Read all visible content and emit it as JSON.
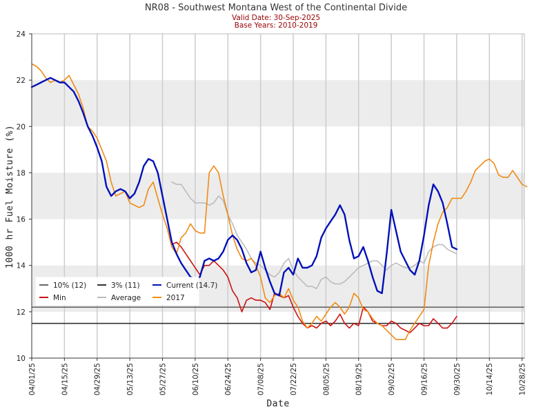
{
  "chart_data": {
    "type": "line",
    "title": "NR08 - Southwest Montana West of the Continental Divide",
    "subtitle_lines": [
      "Valid Date: 30-Sep-2025",
      "Base Years: 2010-2019"
    ],
    "xlabel": "Date",
    "ylabel": "1000 hr Fuel Moisture (%)",
    "ylim": [
      10,
      24
    ],
    "yticks": [
      10,
      12,
      14,
      16,
      18,
      20,
      22,
      24
    ],
    "xlim": [
      0,
      211
    ],
    "xticks": [
      {
        "day": 0,
        "label": "04/01/25"
      },
      {
        "day": 14,
        "label": "04/15/25"
      },
      {
        "day": 28,
        "label": "04/29/25"
      },
      {
        "day": 42,
        "label": "05/13/25"
      },
      {
        "day": 56,
        "label": "05/27/25"
      },
      {
        "day": 70,
        "label": "06/10/25"
      },
      {
        "day": 84,
        "label": "06/24/25"
      },
      {
        "day": 98,
        "label": "07/08/25"
      },
      {
        "day": 112,
        "label": "07/22/25"
      },
      {
        "day": 126,
        "label": "08/05/25"
      },
      {
        "day": 140,
        "label": "08/19/25"
      },
      {
        "day": 154,
        "label": "09/02/25"
      },
      {
        "day": 168,
        "label": "09/16/25"
      },
      {
        "day": 182,
        "label": "09/30/25"
      },
      {
        "day": 196,
        "label": "10/14/25"
      },
      {
        "day": 210,
        "label": "10/28/25"
      }
    ],
    "bands": [
      [
        12,
        14
      ],
      [
        16,
        18
      ],
      [
        20,
        22
      ]
    ],
    "grid": "vertical",
    "legend": {
      "position": "lower-left",
      "columns": 3
    },
    "thresholds": [
      {
        "name": "10% (12)",
        "value": 12.2,
        "color": "#666666"
      },
      {
        "name": "3% (11)",
        "value": 11.5,
        "color": "#333333"
      }
    ],
    "series": [
      {
        "name": "Average",
        "color": "#bbbbbb",
        "width": 1.6,
        "x": [
          60,
          62,
          64,
          66,
          68,
          70,
          72,
          74,
          76,
          78,
          80,
          82,
          84,
          86,
          88,
          90,
          92,
          94,
          96,
          98,
          100,
          102,
          104,
          106,
          108,
          110,
          112,
          114,
          116,
          118,
          120,
          122,
          124,
          126,
          128,
          130,
          132,
          134,
          136,
          138,
          140,
          142,
          144,
          146,
          148,
          150,
          152,
          154,
          156,
          158,
          160,
          162,
          164,
          166,
          168,
          170,
          172,
          174,
          176,
          178,
          180,
          182
        ],
        "y": [
          17.6,
          17.5,
          17.5,
          17.2,
          16.9,
          16.7,
          16.7,
          16.7,
          16.6,
          16.7,
          17.0,
          16.8,
          16.2,
          15.8,
          15.3,
          15.0,
          14.7,
          14.3,
          14.1,
          14.0,
          13.8,
          13.6,
          13.5,
          13.7,
          14.1,
          14.3,
          13.8,
          13.5,
          13.3,
          13.1,
          13.1,
          13.0,
          13.4,
          13.5,
          13.3,
          13.2,
          13.2,
          13.3,
          13.5,
          13.7,
          13.9,
          14.0,
          14.1,
          14.2,
          14.2,
          14.0,
          13.8,
          14.0,
          14.1,
          14.0,
          13.9,
          13.9,
          14.0,
          14.2,
          14.1,
          14.6,
          14.8,
          14.9,
          14.9,
          14.7,
          14.6,
          14.5
        ]
      },
      {
        "name": "Min",
        "color": "#cc1111",
        "width": 1.6,
        "x": [
          60,
          62,
          64,
          66,
          68,
          70,
          72,
          74,
          76,
          78,
          80,
          82,
          84,
          86,
          88,
          90,
          92,
          94,
          96,
          98,
          100,
          102,
          104,
          106,
          108,
          110,
          112,
          114,
          116,
          118,
          120,
          122,
          124,
          126,
          128,
          130,
          132,
          134,
          136,
          138,
          140,
          142,
          144,
          146,
          148,
          150,
          152,
          154,
          156,
          158,
          160,
          162,
          164,
          166,
          168,
          170,
          172,
          174,
          176,
          178,
          180,
          182
        ],
        "y": [
          14.9,
          15.0,
          14.8,
          14.5,
          14.2,
          13.9,
          13.6,
          14.0,
          14.0,
          14.2,
          14.0,
          13.8,
          13.5,
          12.9,
          12.6,
          12.0,
          12.5,
          12.6,
          12.5,
          12.5,
          12.4,
          12.1,
          12.8,
          12.7,
          12.6,
          12.7,
          12.2,
          11.8,
          11.5,
          11.3,
          11.4,
          11.3,
          11.5,
          11.6,
          11.4,
          11.6,
          11.9,
          11.5,
          11.3,
          11.5,
          11.4,
          12.2,
          12.0,
          11.6,
          11.5,
          11.4,
          11.4,
          11.6,
          11.5,
          11.3,
          11.2,
          11.1,
          11.3,
          11.5,
          11.4,
          11.4,
          11.7,
          11.5,
          11.3,
          11.3,
          11.5,
          11.8
        ]
      },
      {
        "name": "2017",
        "color": "#f08a13",
        "width": 1.6,
        "x": [
          0,
          2,
          4,
          6,
          8,
          10,
          12,
          14,
          16,
          18,
          20,
          22,
          24,
          26,
          28,
          30,
          32,
          34,
          36,
          38,
          40,
          42,
          44,
          46,
          48,
          50,
          52,
          54,
          56,
          58,
          60,
          62,
          64,
          66,
          68,
          70,
          72,
          74,
          76,
          78,
          80,
          82,
          84,
          86,
          88,
          90,
          92,
          94,
          96,
          98,
          100,
          102,
          104,
          106,
          108,
          110,
          112,
          114,
          116,
          118,
          120,
          122,
          124,
          126,
          128,
          130,
          132,
          134,
          136,
          138,
          140,
          142,
          144,
          146,
          148,
          150,
          152,
          154,
          156,
          158,
          160,
          162,
          164,
          166,
          168,
          170,
          172,
          174,
          176,
          178,
          180,
          182,
          184,
          186,
          188,
          190,
          192,
          194,
          196,
          198,
          200,
          202,
          204,
          206,
          208,
          210,
          212
        ],
        "y": [
          22.7,
          22.6,
          22.4,
          22.1,
          21.9,
          22.0,
          21.9,
          22.0,
          22.2,
          21.8,
          21.4,
          20.8,
          20.0,
          19.8,
          19.5,
          19.0,
          18.5,
          17.6,
          17.0,
          17.1,
          17.2,
          16.7,
          16.6,
          16.5,
          16.6,
          17.3,
          17.6,
          16.9,
          16.2,
          15.6,
          14.8,
          14.5,
          15.2,
          15.4,
          15.8,
          15.5,
          15.4,
          15.4,
          18.0,
          18.3,
          18.0,
          17.0,
          16.2,
          15.3,
          14.7,
          14.3,
          14.2,
          14.3,
          14.0,
          13.5,
          12.6,
          12.4,
          12.7,
          12.8,
          12.6,
          13.0,
          12.5,
          12.2,
          11.6,
          11.3,
          11.5,
          11.8,
          11.6,
          11.9,
          12.2,
          12.4,
          12.2,
          11.9,
          12.2,
          12.8,
          12.6,
          12.1,
          12.0,
          11.7,
          11.5,
          11.4,
          11.2,
          11.0,
          10.8,
          10.8,
          10.8,
          11.2,
          11.5,
          11.8,
          12.1,
          14.0,
          15.0,
          15.8,
          16.3,
          16.5,
          16.9,
          16.9,
          16.9,
          17.2,
          17.6,
          18.1,
          18.3,
          18.5,
          18.6,
          18.4,
          17.9,
          17.8,
          17.8,
          18.1,
          17.8,
          17.5,
          17.4
        ]
      },
      {
        "name": "Current (14.7)",
        "color": "#0010b8",
        "width": 2.4,
        "x": [
          0,
          2,
          4,
          6,
          8,
          10,
          12,
          14,
          16,
          18,
          20,
          22,
          24,
          26,
          28,
          30,
          32,
          34,
          36,
          38,
          40,
          42,
          44,
          46,
          48,
          50,
          52,
          54,
          56,
          58,
          60,
          62,
          64,
          66,
          68,
          70,
          72,
          74,
          76,
          78,
          80,
          82,
          84,
          86,
          88,
          90,
          92,
          94,
          96,
          98,
          100,
          102,
          104,
          106,
          108,
          110,
          112,
          114,
          116,
          118,
          120,
          122,
          124,
          126,
          128,
          130,
          132,
          134,
          136,
          138,
          140,
          142,
          144,
          146,
          148,
          150,
          152,
          154,
          156,
          158,
          160,
          162,
          164,
          166,
          168,
          170,
          172,
          174,
          176,
          178,
          180,
          182
        ],
        "y": [
          21.7,
          21.8,
          21.9,
          22.0,
          22.1,
          22.0,
          21.9,
          21.9,
          21.7,
          21.5,
          21.1,
          20.6,
          20.0,
          19.6,
          19.1,
          18.5,
          17.4,
          17.0,
          17.2,
          17.3,
          17.2,
          16.9,
          17.1,
          17.6,
          18.3,
          18.6,
          18.5,
          18.0,
          17.0,
          16.0,
          15.0,
          14.5,
          14.1,
          13.8,
          13.5,
          13.4,
          13.5,
          14.2,
          14.3,
          14.2,
          14.3,
          14.6,
          15.1,
          15.3,
          15.1,
          14.7,
          14.1,
          13.7,
          13.8,
          14.6,
          13.9,
          13.3,
          12.8,
          12.7,
          13.7,
          13.9,
          13.6,
          14.3,
          13.9,
          13.9,
          14.0,
          14.4,
          15.2,
          15.6,
          15.9,
          16.2,
          16.6,
          16.2,
          15.1,
          14.3,
          14.4,
          14.8,
          14.2,
          13.5,
          12.9,
          12.8,
          14.5,
          16.4,
          15.5,
          14.6,
          14.2,
          13.8,
          13.6,
          14.2,
          15.3,
          16.6,
          17.5,
          17.2,
          16.7,
          15.8,
          14.8,
          14.7
        ]
      }
    ]
  }
}
